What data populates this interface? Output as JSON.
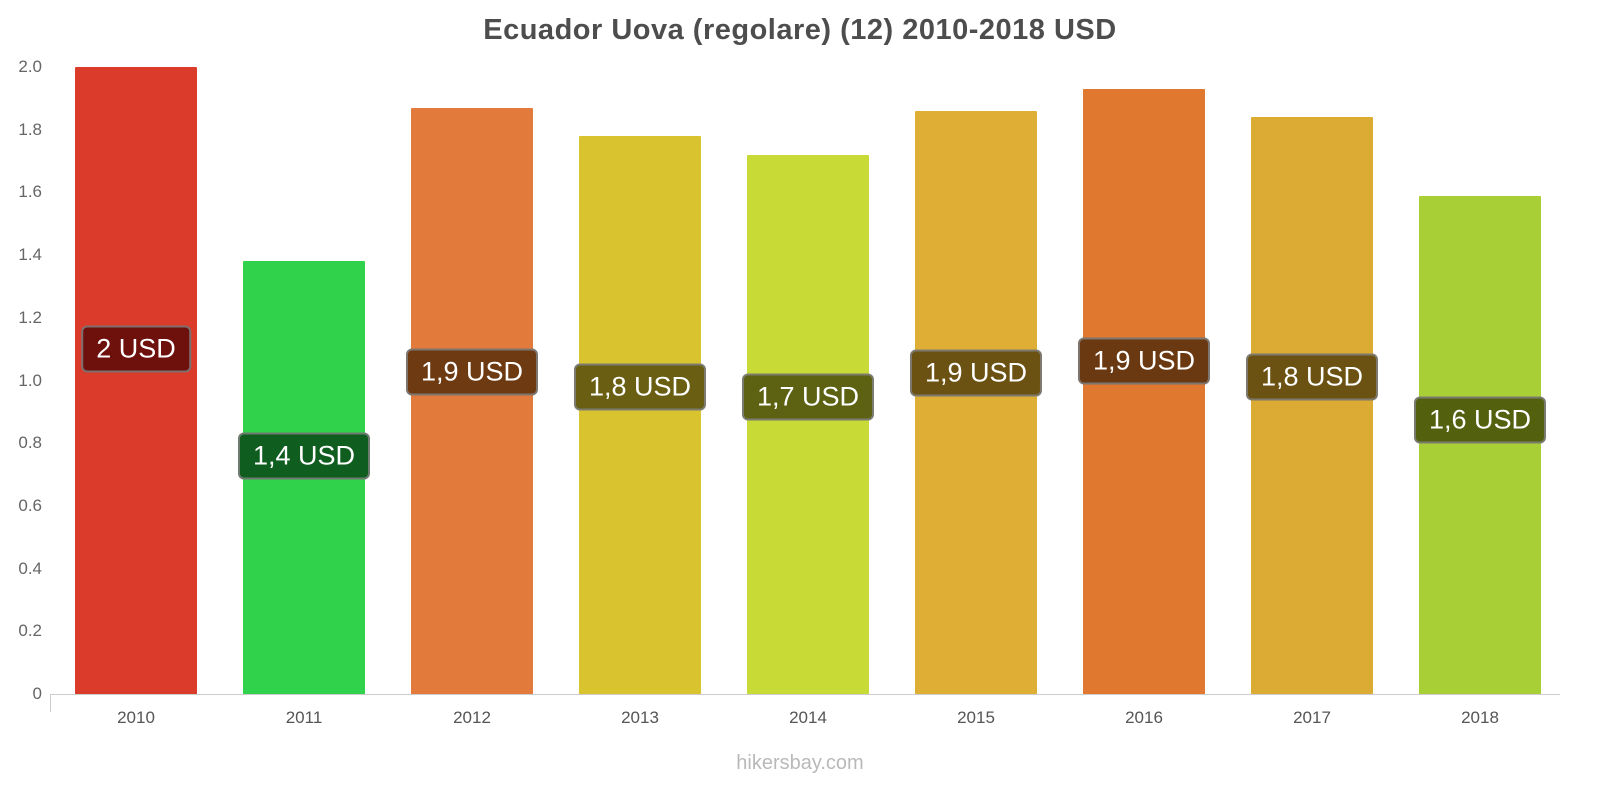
{
  "title": "Ecuador Uova (regolare) (12) 2010-2018 USD",
  "footer": "hikersbay.com",
  "colors": {
    "title_text": "#4d4d4d",
    "axis_text": "#666666",
    "axis_line": "#cccccc",
    "label_text": "#ffffff",
    "label_border": "#808080",
    "footer_text": "#b9b9b9"
  },
  "chart_data": {
    "type": "bar",
    "title": "Ecuador Uova (regolare) (12) 2010-2018 USD",
    "categories": [
      "2010",
      "2011",
      "2012",
      "2013",
      "2014",
      "2015",
      "2016",
      "2017",
      "2018"
    ],
    "values": [
      2.0,
      1.38,
      1.87,
      1.78,
      1.72,
      1.86,
      1.93,
      1.84,
      1.59
    ],
    "labels": [
      "2 USD",
      "1,4 USD",
      "1,9 USD",
      "1,8 USD",
      "1,7 USD",
      "1,9 USD",
      "1,9 USD",
      "1,8 USD",
      "1,6 USD"
    ],
    "bar_colors": [
      "#da3b2b",
      "#2fd24a",
      "#e27a3b",
      "#d9c430",
      "#c8da36",
      "#dfae35",
      "#e0782f",
      "#dcab33",
      "#a9cf36"
    ],
    "label_colors": [
      "#6e100c",
      "#0f5e20",
      "#6e3a12",
      "#6a5e13",
      "#5c6212",
      "#6b5213",
      "#6b3911",
      "#6b5213",
      "#53610f"
    ],
    "xlabel": "",
    "ylabel": "",
    "ylim": [
      0,
      2.0
    ],
    "yticks": [
      0,
      0.2,
      0.4,
      0.6,
      0.8,
      1.0,
      1.2,
      1.4,
      1.6,
      1.8,
      2.0
    ],
    "grid": false,
    "legend": false,
    "unit": "USD"
  }
}
